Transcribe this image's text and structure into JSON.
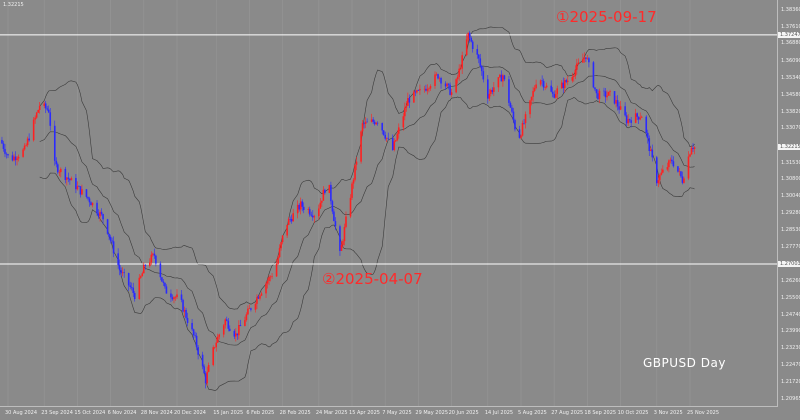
{
  "header": {
    "info": "1.32215"
  },
  "symbol_label": "GBPUSD  Day",
  "annotations": {
    "high": "①2025-09-17",
    "low": "②2025-04-07"
  },
  "colors": {
    "background": "#8a8a8a",
    "bull": "#ff2020",
    "bear": "#2a2aff",
    "bands": "#3a3a3a",
    "hline": "#ffffff",
    "annotation": "#ff2a2a"
  },
  "chart_data": {
    "type": "candlestick",
    "title": "",
    "indicator": "Bollinger Bands",
    "grid": true,
    "ylim": [
      1.20965,
      1.3836
    ],
    "yticks": [
      "1.38360",
      "1.37610",
      "1.36880",
      "1.36090",
      "1.35340",
      "1.34580",
      "1.33820",
      "1.33070",
      "1.31530",
      "1.30800",
      "1.30040",
      "1.29280",
      "1.28530",
      "1.27770",
      "1.26260",
      "1.25500",
      "1.24740",
      "1.23990",
      "1.23230",
      "1.22470",
      "1.21720",
      "1.20965"
    ],
    "highlighted_prices": [
      "1.37247",
      "1.32215",
      "1.27003"
    ],
    "horizontal_lines": [
      1.37247,
      1.27003
    ],
    "xticks": [
      "30 Aug 2024",
      "23 Sep 2024",
      "15 Oct 2024",
      "6 Nov 2024",
      "28 Nov 2024",
      "20 Dec 2024",
      "15 Jan 2025",
      "6 Feb 2025",
      "28 Feb 2025",
      "24 Mar 2025",
      "15 Apr 2025",
      "7 May 2025",
      "29 May 2025",
      "20 Jun 2025",
      "14 Jul 2025",
      "5 Aug 2025",
      "27 Aug 2025",
      "18 Sep 2025",
      "10 Oct 2025",
      "3 Nov 2025",
      "25 Nov 2025"
    ],
    "close_path": [
      [
        "2024-08-25",
        1.3255
      ],
      [
        "2024-08-31",
        1.3165
      ],
      [
        "2024-09-10",
        1.321
      ],
      [
        "2024-09-20",
        1.3411
      ],
      [
        "2024-09-26",
        1.3389
      ],
      [
        "2024-09-30",
        1.3143
      ],
      [
        "2024-10-10",
        1.3076
      ],
      [
        "2024-10-23",
        1.2987
      ],
      [
        "2024-11-02",
        1.2897
      ],
      [
        "2024-11-12",
        1.2674
      ],
      [
        "2024-11-22",
        1.2562
      ],
      [
        "2024-11-29",
        1.2696
      ],
      [
        "2024-12-05",
        1.2741
      ],
      [
        "2024-12-12",
        1.2584
      ],
      [
        "2024-12-22",
        1.254
      ],
      [
        "2025-01-01",
        1.2361
      ],
      [
        "2025-01-08",
        1.2182
      ],
      [
        "2025-01-14",
        1.2339
      ],
      [
        "2025-01-21",
        1.245
      ],
      [
        "2025-01-28",
        1.2383
      ],
      [
        "2025-02-06",
        1.2495
      ],
      [
        "2025-02-16",
        1.2607
      ],
      [
        "2025-02-23",
        1.2674
      ],
      [
        "2025-03-02",
        1.2875
      ],
      [
        "2025-03-12",
        1.2964
      ],
      [
        "2025-03-22",
        1.292
      ],
      [
        "2025-03-30",
        1.3076
      ],
      [
        "2025-04-07",
        1.2741
      ],
      [
        "2025-04-14",
        1.3009
      ],
      [
        "2025-04-22",
        1.3322
      ],
      [
        "2025-05-02",
        1.3344
      ],
      [
        "2025-05-12",
        1.321
      ],
      [
        "2025-05-22",
        1.3434
      ],
      [
        "2025-06-01",
        1.3478
      ],
      [
        "2025-06-11",
        1.3545
      ],
      [
        "2025-06-21",
        1.3456
      ],
      [
        "2025-07-01",
        1.3724
      ],
      [
        "2025-07-08",
        1.3612
      ],
      [
        "2025-07-14",
        1.3456
      ],
      [
        "2025-07-24",
        1.3545
      ],
      [
        "2025-08-03",
        1.3255
      ],
      [
        "2025-08-10",
        1.3389
      ],
      [
        "2025-08-16",
        1.3545
      ],
      [
        "2025-08-26",
        1.3456
      ],
      [
        "2025-09-05",
        1.3523
      ],
      [
        "2025-09-17",
        1.3635
      ],
      [
        "2025-09-24",
        1.3456
      ],
      [
        "2025-10-04",
        1.3456
      ],
      [
        "2025-10-14",
        1.3344
      ],
      [
        "2025-10-24",
        1.3367
      ],
      [
        "2025-11-03",
        1.3076
      ],
      [
        "2025-11-13",
        1.3165
      ],
      [
        "2025-11-20",
        1.3076
      ],
      [
        "2025-11-26",
        1.3232
      ],
      [
        "2025-11-28",
        1.3222
      ]
    ]
  }
}
